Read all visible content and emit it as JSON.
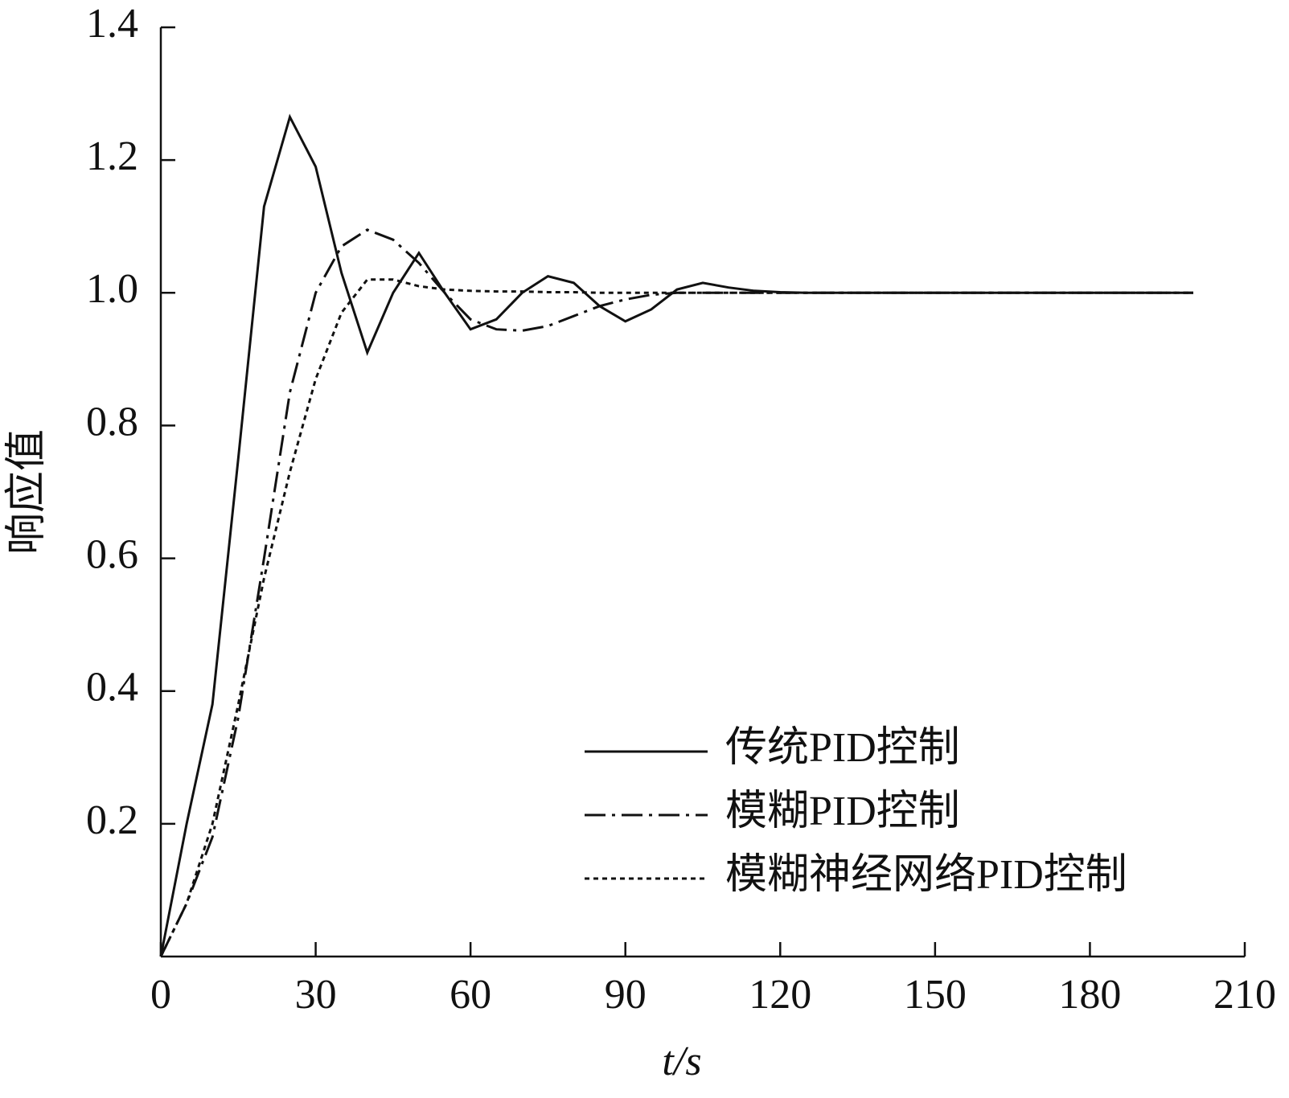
{
  "chart_data": {
    "type": "line",
    "x_label": "t/s",
    "y_label": "响应值",
    "x": [
      0,
      5,
      10,
      15,
      20,
      25,
      30,
      35,
      40,
      45,
      50,
      55,
      60,
      65,
      70,
      75,
      80,
      85,
      90,
      95,
      100,
      105,
      110,
      115,
      120,
      125,
      130,
      135,
      140,
      145,
      150,
      155,
      160,
      165,
      170,
      175,
      180,
      185,
      190,
      195,
      200
    ],
    "series": [
      {
        "name": "传统PID控制",
        "color": "#111111",
        "linestyle": "solid",
        "values": [
          0,
          0.2,
          0.38,
          0.75,
          1.13,
          1.265,
          1.19,
          1.03,
          0.91,
          1.0,
          1.06,
          1.0,
          0.945,
          0.96,
          1.0,
          1.025,
          1.015,
          0.98,
          0.957,
          0.975,
          1.005,
          1.015,
          1.008,
          1.003,
          1.001,
          1,
          1,
          1,
          1,
          1,
          1,
          1,
          1,
          1,
          1,
          1,
          1,
          1,
          1,
          1,
          1
        ]
      },
      {
        "name": "模糊PID控制",
        "color": "#111111",
        "linestyle": "dashdot",
        "values": [
          0,
          0.08,
          0.18,
          0.36,
          0.6,
          0.85,
          1.0,
          1.07,
          1.095,
          1.08,
          1.045,
          1.0,
          0.96,
          0.945,
          0.943,
          0.95,
          0.965,
          0.98,
          0.99,
          0.997,
          1.0,
          1,
          1,
          1,
          1,
          1,
          1,
          1,
          1,
          1,
          1,
          1,
          1,
          1,
          1,
          1,
          1,
          1,
          1,
          1,
          1
        ]
      },
      {
        "name": "模糊神经网络PID控制",
        "color": "#111111",
        "linestyle": "dotted",
        "values": [
          0,
          0.08,
          0.2,
          0.38,
          0.57,
          0.73,
          0.87,
          0.97,
          1.02,
          1.02,
          1.01,
          1.005,
          1.003,
          1.002,
          1.002,
          1.001,
          1.001,
          1,
          1,
          1,
          1,
          1,
          1,
          1,
          1,
          1,
          1,
          1,
          1,
          1,
          1,
          1,
          1,
          1,
          1,
          1,
          1,
          1,
          1,
          1,
          1
        ]
      }
    ],
    "xlim": [
      0,
      210
    ],
    "xticks": [
      0,
      30,
      60,
      90,
      120,
      150,
      180,
      210
    ],
    "ylim": [
      0,
      1.4
    ],
    "yticks": [
      0.2,
      0.4,
      0.6,
      0.8,
      {
        "value": 1,
        "label": "1.0"
      },
      1.2,
      1.4
    ],
    "grid": false,
    "legend": "lower right"
  }
}
